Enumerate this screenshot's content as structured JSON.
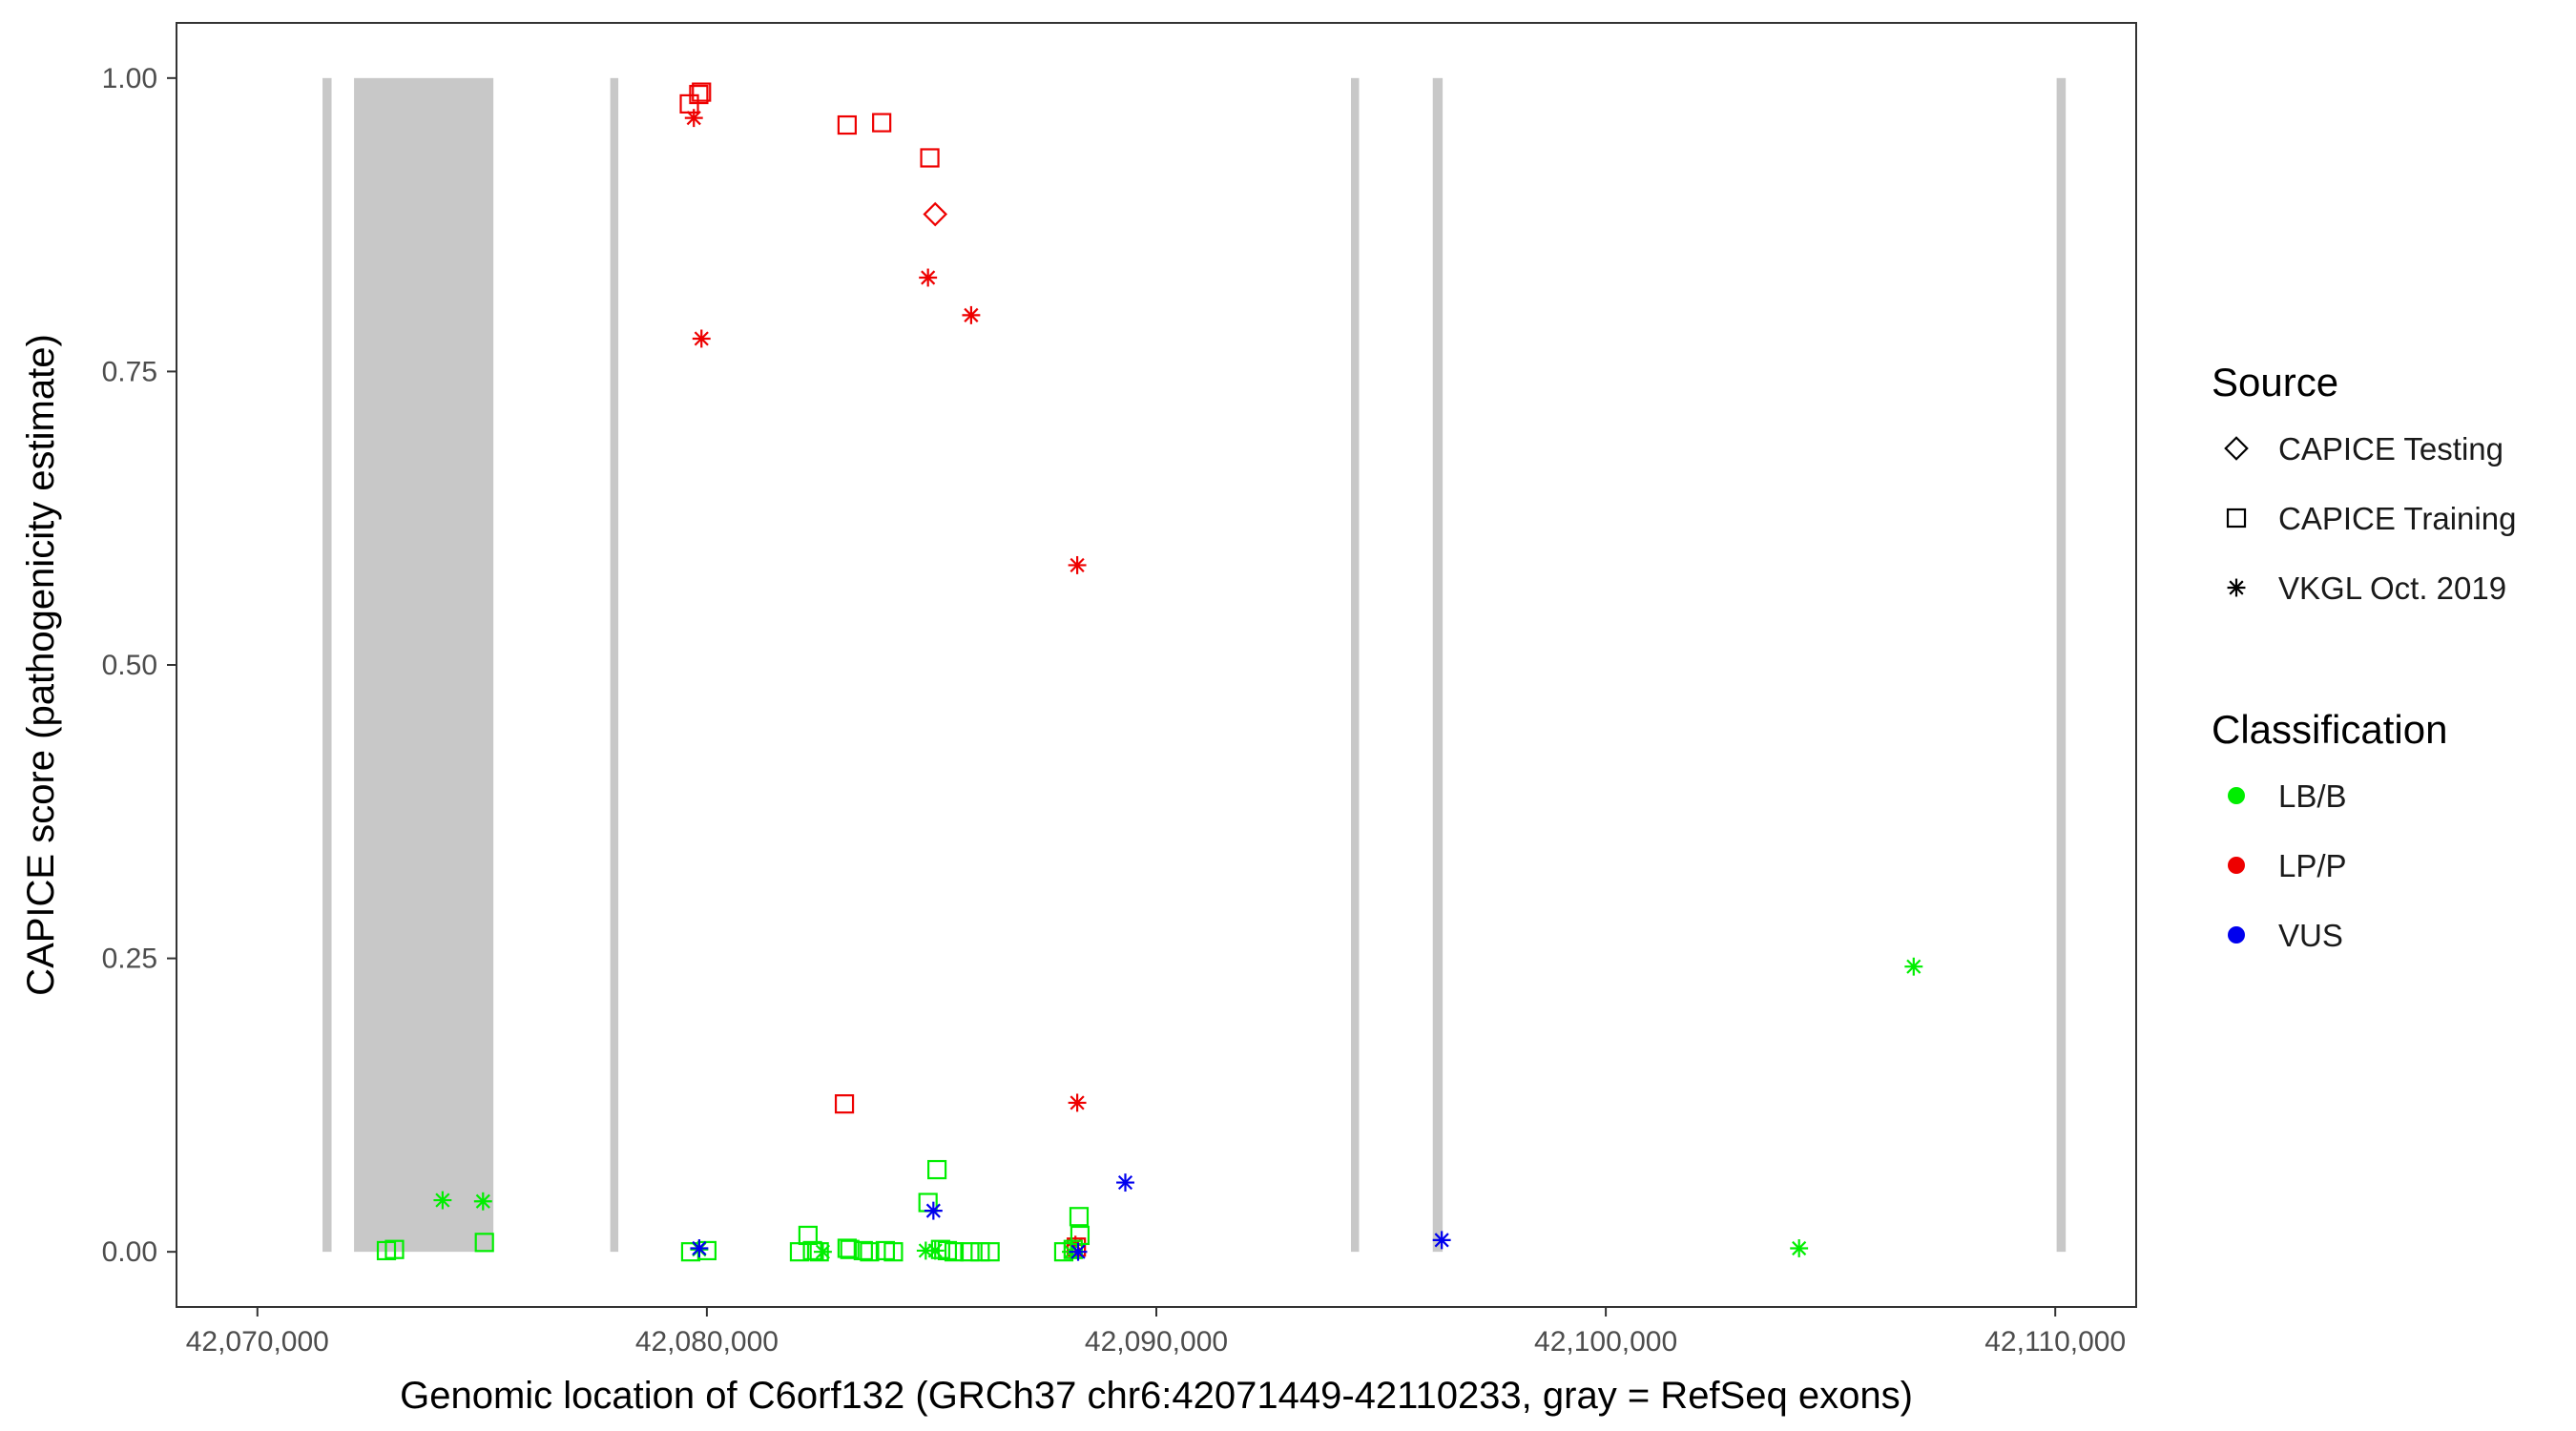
{
  "chart_data": {
    "type": "scatter",
    "xlabel": "Genomic location of C6orf132 (GRCh37 chr6:42071449-42110233, gray = RefSeq exons)",
    "ylabel": "CAPICE score (pathogenicity estimate)",
    "xlim": [
      42068200,
      42111800
    ],
    "ylim": [
      -0.047,
      1.047
    ],
    "x_ticks": [
      42070000,
      42080000,
      42090000,
      42100000,
      42110000
    ],
    "x_tick_labels": [
      "42,070,000",
      "42,080,000",
      "42,090,000",
      "42,100,000",
      "42,110,000"
    ],
    "y_ticks": [
      0,
      0.25,
      0.5,
      0.75,
      1.0
    ],
    "y_tick_labels": [
      "0.00",
      "0.25",
      "0.50",
      "0.75",
      "1.00"
    ],
    "grid": false,
    "exons": [
      {
        "start": 42071449,
        "end": 42071650
      },
      {
        "start": 42072150,
        "end": 42075250
      },
      {
        "start": 42077850,
        "end": 42078030
      },
      {
        "start": 42094330,
        "end": 42094510
      },
      {
        "start": 42096150,
        "end": 42096370
      },
      {
        "start": 42110030,
        "end": 42110233
      }
    ],
    "exon_color": "#c8c8c8",
    "legend": {
      "position": "right",
      "source_title": "Source",
      "source_items": [
        {
          "label": "CAPICE Testing",
          "shape": "diamond"
        },
        {
          "label": "CAPICE Training",
          "shape": "square"
        },
        {
          "label": "VKGL Oct. 2019",
          "shape": "asterisk"
        }
      ],
      "class_title": "Classification",
      "class_items": [
        {
          "label": "LB/B",
          "color": "#00ee00"
        },
        {
          "label": "LP/P",
          "color": "#ee0000"
        },
        {
          "label": "VUS",
          "color": "#0000ee"
        }
      ]
    },
    "series": [
      {
        "source": "CAPICE Training",
        "classification": "LP/P",
        "points": [
          [
            42079610,
            0.978
          ],
          [
            42079820,
            0.986
          ],
          [
            42079880,
            0.988
          ],
          [
            42083120,
            0.96
          ],
          [
            42083890,
            0.962
          ],
          [
            42084960,
            0.932
          ],
          [
            42083060,
            0.126
          ],
          [
            42088220,
            0.004
          ]
        ]
      },
      {
        "source": "CAPICE Testing",
        "classification": "LP/P",
        "points": [
          [
            42085080,
            0.884
          ]
        ]
      },
      {
        "source": "VKGL Oct. 2019",
        "classification": "LP/P",
        "points": [
          [
            42079710,
            0.966
          ],
          [
            42079880,
            0.778
          ],
          [
            42084920,
            0.83
          ],
          [
            42085880,
            0.798
          ],
          [
            42088240,
            0.585
          ],
          [
            42088240,
            0.127
          ],
          [
            42088200,
            0.006
          ]
        ]
      },
      {
        "source": "CAPICE Training",
        "classification": "LB/B",
        "points": [
          [
            42072870,
            0.001
          ],
          [
            42073050,
            0.002
          ],
          [
            42075050,
            0.008
          ],
          [
            42079640,
            0.0
          ],
          [
            42080000,
            0.001
          ],
          [
            42082060,
            0.0
          ],
          [
            42082250,
            0.014
          ],
          [
            42082350,
            0.001
          ],
          [
            42082500,
            0.0
          ],
          [
            42083120,
            0.003
          ],
          [
            42083180,
            0.002
          ],
          [
            42083480,
            0.001
          ],
          [
            42083620,
            0.0
          ],
          [
            42083970,
            0.001
          ],
          [
            42084150,
            0.0
          ],
          [
            42084920,
            0.042
          ],
          [
            42085120,
            0.07
          ],
          [
            42085200,
            0.002
          ],
          [
            42085350,
            0.001
          ],
          [
            42085500,
            0.0
          ],
          [
            42085850,
            0.0
          ],
          [
            42086080,
            0.0
          ],
          [
            42086300,
            0.0
          ],
          [
            42087940,
            0.0
          ],
          [
            42088280,
            0.03
          ],
          [
            42088300,
            0.014
          ],
          [
            42088150,
            0.002
          ]
        ]
      },
      {
        "source": "VKGL Oct. 2019",
        "classification": "LB/B",
        "points": [
          [
            42074120,
            0.044
          ],
          [
            42075020,
            0.043
          ],
          [
            42079830,
            0.002
          ],
          [
            42082580,
            0.0
          ],
          [
            42084870,
            0.001
          ],
          [
            42085080,
            0.001
          ],
          [
            42088100,
            0.0
          ],
          [
            42104300,
            0.003
          ],
          [
            42106850,
            0.243
          ]
        ]
      },
      {
        "source": "VKGL Oct. 2019",
        "classification": "VUS",
        "points": [
          [
            42079830,
            0.003
          ],
          [
            42085040,
            0.035
          ],
          [
            42088260,
            0.0
          ],
          [
            42089310,
            0.059
          ],
          [
            42096350,
            0.01
          ]
        ]
      }
    ]
  }
}
